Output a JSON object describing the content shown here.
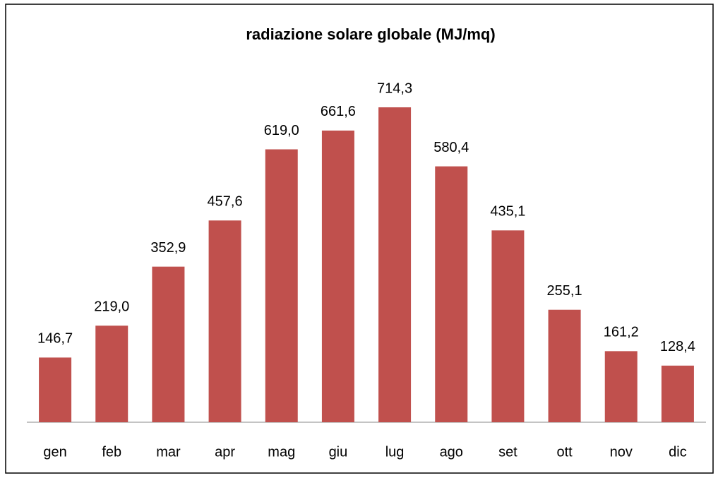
{
  "chart_data": {
    "type": "bar",
    "title": "radiazione solare globale (MJ/mq)",
    "categories": [
      "gen",
      "feb",
      "mar",
      "apr",
      "mag",
      "giu",
      "lug",
      "ago",
      "set",
      "ott",
      "nov",
      "dic"
    ],
    "values": [
      146.7,
      219.0,
      352.9,
      457.6,
      619.0,
      661.6,
      714.3,
      580.4,
      435.1,
      255.1,
      161.2,
      128.4
    ],
    "value_labels": [
      "146,7",
      "219,0",
      "352,9",
      "457,6",
      "619,0",
      "661,6",
      "714,3",
      "580,4",
      "435,1",
      "255,1",
      "161,2",
      "128,4"
    ],
    "color": "#c0504d"
  }
}
